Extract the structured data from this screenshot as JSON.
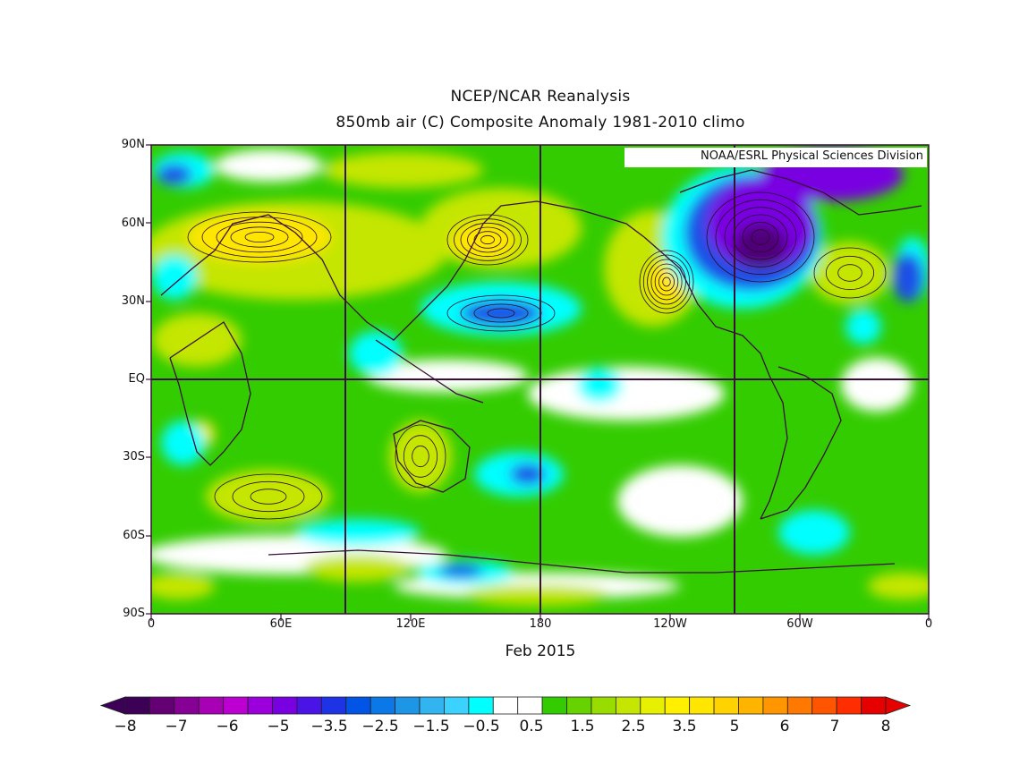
{
  "title_line1": "NCEP/NCAR Reanalysis",
  "title_line2": "850mb air (C) Composite Anomaly 1981-2010 climo",
  "credit": "NOAA/ESRL Physical Sciences Division",
  "x_axis_label": "Feb 2015",
  "x_ticks": [
    "0",
    "60E",
    "120E",
    "180",
    "120W",
    "60W",
    "0"
  ],
  "y_ticks": [
    "90N",
    "60N",
    "30N",
    "EQ",
    "30S",
    "60S",
    "90S"
  ],
  "colorbar": {
    "labels": [
      "-8",
      "-7",
      "-6",
      "-5",
      "-3.5",
      "-2.5",
      "-1.5",
      "-0.5",
      "0.5",
      "1.5",
      "2.5",
      "3.5",
      "5",
      "6",
      "7",
      "8"
    ],
    "colors": [
      "#3c0056",
      "#640073",
      "#870096",
      "#a800b4",
      "#bd00d2",
      "#9b00dc",
      "#7800e1",
      "#4b14e6",
      "#1e32e6",
      "#0055e6",
      "#0a78e6",
      "#1e96e6",
      "#32b4f0",
      "#3cd2ff",
      "#00ffff",
      "#ffffff",
      "#ffffff",
      "#33cc00",
      "#66d200",
      "#99dc00",
      "#c4e600",
      "#e6f000",
      "#fff000",
      "#ffe600",
      "#ffd200",
      "#ffb400",
      "#ff9600",
      "#ff7800",
      "#ff5500",
      "#ff2d00",
      "#e60000"
    ]
  },
  "regions": {
    "warm_strong": "#ffe600",
    "warm": "#c4e600",
    "mild": "#33cc00",
    "neutral": "#ffffff",
    "cool": "#00ffff",
    "cold": "#1e50e6",
    "very_cold": "#7800e1",
    "extreme_cold": "#500078"
  }
}
